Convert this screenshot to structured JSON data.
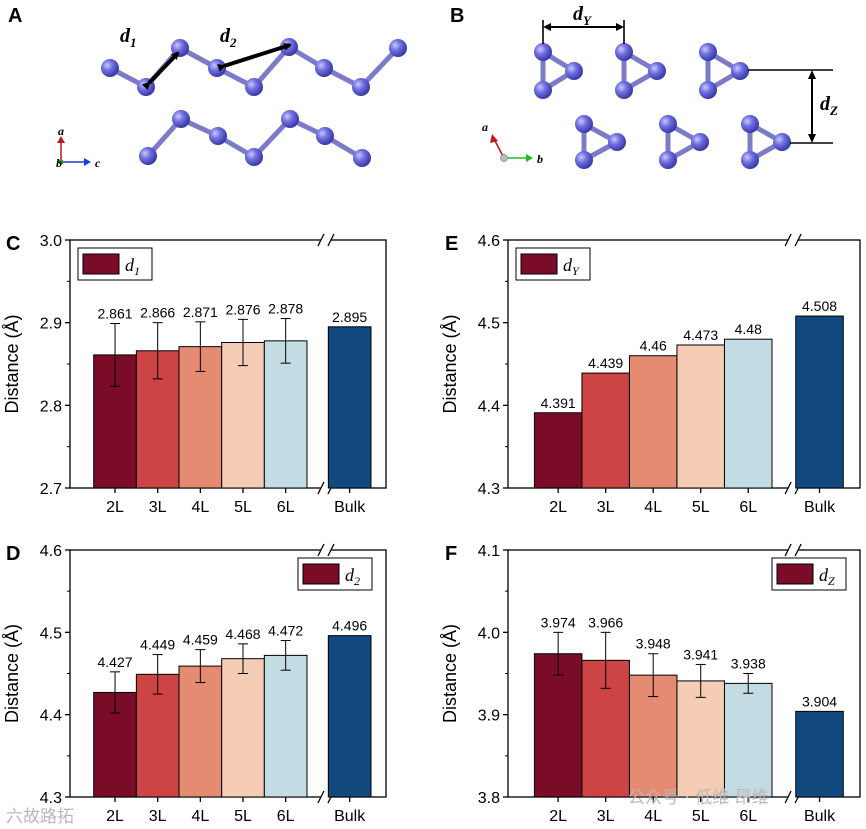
{
  "panel_letters": {
    "A": "A",
    "B": "B",
    "C": "C",
    "D": "D",
    "E": "E",
    "F": "F"
  },
  "structure_a": {
    "d1": {
      "letter": "d",
      "sub": "1"
    },
    "d2": {
      "letter": "d",
      "sub": "2"
    },
    "axes": {
      "a": "a",
      "b": "b",
      "c": "c"
    },
    "atom_color": "#6b6bd6",
    "bond_color": "#7b7bc8"
  },
  "structure_b": {
    "dY": {
      "letter": "d",
      "sub": "Y"
    },
    "dZ": {
      "letter": "d",
      "sub": "Z"
    },
    "axes": {
      "a": "a",
      "b": "b"
    }
  },
  "watermark": {
    "left": "六故路拓",
    "right": "公众号 · 低维 昂维"
  },
  "colors": {
    "2L": "#7b0c28",
    "3L": "#cc4444",
    "4L": "#e58b72",
    "5L": "#f5cdb5",
    "6L": "#c3dbe3",
    "Bulk": "#124a80"
  },
  "chart_data": [
    {
      "panel": "C",
      "type": "bar",
      "title": "",
      "legend": {
        "letter": "d",
        "sub": "1",
        "position": "top-left"
      },
      "xlabel": "",
      "ylabel": "Distance (Å)",
      "categories": [
        "2L",
        "3L",
        "4L",
        "5L",
        "6L",
        "Bulk"
      ],
      "values": [
        2.861,
        2.866,
        2.871,
        2.876,
        2.878,
        2.895
      ],
      "value_labels": [
        "2.861",
        "2.866",
        "2.871",
        "2.876",
        "2.878",
        "2.895"
      ],
      "errors": [
        0.038,
        0.034,
        0.03,
        0.028,
        0.027,
        null
      ],
      "ylim": [
        2.7,
        3.0
      ],
      "yticks": [
        2.7,
        2.8,
        2.9,
        3.0
      ],
      "ytick_labels": [
        "2.7",
        "2.8",
        "2.9",
        "3.0"
      ],
      "axis_break": "//"
    },
    {
      "panel": "E",
      "type": "bar",
      "title": "",
      "legend": {
        "letter": "d",
        "sub": "Y",
        "position": "top-left"
      },
      "xlabel": "",
      "ylabel": "Distance (Å)",
      "categories": [
        "2L",
        "3L",
        "4L",
        "5L",
        "6L",
        "Bulk"
      ],
      "values": [
        4.391,
        4.439,
        4.46,
        4.473,
        4.48,
        4.508
      ],
      "value_labels": [
        "4.391",
        "4.439",
        "4.46",
        "4.473",
        "4.48",
        "4.508"
      ],
      "errors": [
        null,
        null,
        null,
        null,
        null,
        null
      ],
      "ylim": [
        4.3,
        4.6
      ],
      "yticks": [
        4.3,
        4.4,
        4.5,
        4.6
      ],
      "ytick_labels": [
        "4.3",
        "4.4",
        "4.5",
        "4.6"
      ],
      "axis_break": "//"
    },
    {
      "panel": "D",
      "type": "bar",
      "title": "",
      "legend": {
        "letter": "d",
        "sub": "2",
        "position": "top-right"
      },
      "xlabel": "",
      "ylabel": "Distance (Å)",
      "categories": [
        "2L",
        "3L",
        "4L",
        "5L",
        "6L",
        "Bulk"
      ],
      "values": [
        4.427,
        4.449,
        4.459,
        4.468,
        4.472,
        4.496
      ],
      "value_labels": [
        "4.427",
        "4.449",
        "4.459",
        "4.468",
        "4.472",
        "4.496"
      ],
      "errors": [
        0.025,
        0.024,
        0.02,
        0.018,
        0.018,
        null
      ],
      "ylim": [
        4.3,
        4.6
      ],
      "yticks": [
        4.3,
        4.4,
        4.5,
        4.6
      ],
      "ytick_labels": [
        "4.3",
        "4.4",
        "4.5",
        "4.6"
      ],
      "axis_break": "//"
    },
    {
      "panel": "F",
      "type": "bar",
      "title": "",
      "legend": {
        "letter": "d",
        "sub": "Z",
        "position": "top-right"
      },
      "xlabel": "",
      "ylabel": "Distance (Å)",
      "categories": [
        "2L",
        "3L",
        "4L",
        "5L",
        "6L",
        "Bulk"
      ],
      "values": [
        3.974,
        3.966,
        3.948,
        3.941,
        3.938,
        3.904
      ],
      "value_labels": [
        "3.974",
        "3.966",
        "3.948",
        "3.941",
        "3.938",
        "3.904"
      ],
      "errors": [
        0.026,
        0.034,
        0.026,
        0.02,
        0.012,
        null
      ],
      "ylim": [
        3.8,
        4.1
      ],
      "yticks": [
        3.8,
        3.9,
        4.0,
        4.1
      ],
      "ytick_labels": [
        "3.8",
        "3.9",
        "4.0",
        "4.1"
      ],
      "axis_break": "//"
    }
  ]
}
